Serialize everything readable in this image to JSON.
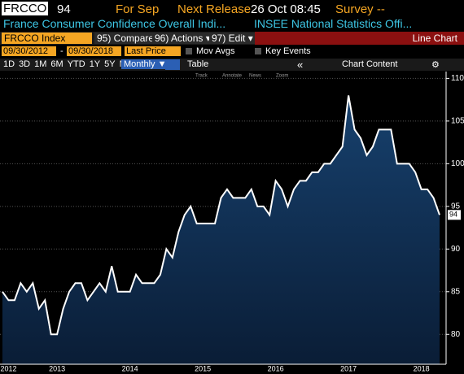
{
  "header": {
    "ticker": "FRCCO",
    "value": "94",
    "period": "For Sep",
    "next_release_label": "Next Release",
    "next_release": "26 Oct 08:45",
    "survey": "Survey --",
    "description": "France Consumer Confidence Overall Indi...",
    "source": "INSEE National Statistics Offi..."
  },
  "toolbar": {
    "security": "FRCCO Index",
    "compare": "95) Compare",
    "actions": "96) Actions ▾",
    "edit": "97) Edit ▾",
    "view": "Line Chart"
  },
  "range": {
    "start": "09/30/2012",
    "separator": "-",
    "end": "09/30/2018",
    "field": "Last Price",
    "mov_avgs": "Mov Avgs",
    "key_events": "Key Events"
  },
  "periods": [
    "1D",
    "3D",
    "1M",
    "6M",
    "YTD",
    "1Y",
    "5Y",
    "Max"
  ],
  "frequency": "Monthly ▼",
  "table": "Table",
  "collapse": "«",
  "chart_content": "Chart Content",
  "chart_tools": [
    "Track",
    "Annotate",
    "News",
    "Zoom"
  ],
  "chart_data": {
    "type": "area",
    "color": "#ffffff",
    "grid": true,
    "categories": [
      null,
      "2012",
      null,
      null,
      null,
      null,
      null,
      null,
      null,
      "2013",
      null,
      null,
      null,
      null,
      null,
      null,
      null,
      null,
      null,
      null,
      null,
      "2014",
      null,
      null,
      null,
      null,
      null,
      null,
      null,
      null,
      null,
      null,
      null,
      "2015",
      null,
      null,
      null,
      null,
      null,
      null,
      null,
      null,
      null,
      null,
      null,
      "2016",
      null,
      null,
      null,
      null,
      null,
      null,
      null,
      null,
      null,
      null,
      null,
      "2017",
      null,
      null,
      null,
      null,
      null,
      null,
      null,
      null,
      null,
      null,
      null,
      "2018",
      null,
      null,
      null
    ],
    "values": [
      85,
      84,
      84,
      86,
      85,
      86,
      83,
      84,
      80,
      80,
      83,
      85,
      86,
      86,
      84,
      85,
      86,
      85,
      88,
      85,
      85,
      85,
      87,
      86,
      86,
      86,
      87,
      90,
      89,
      92,
      94,
      95,
      93,
      93,
      93,
      93,
      96,
      97,
      96,
      96,
      96,
      97,
      95,
      95,
      94,
      98,
      97,
      95,
      97,
      98,
      98,
      99,
      99,
      100,
      100,
      101,
      102,
      108,
      104,
      103,
      101,
      102,
      104,
      104,
      104,
      100,
      100,
      100,
      99,
      97,
      97,
      96,
      94
    ],
    "ylim": [
      76.5,
      110.8
    ],
    "yticks": [
      80,
      85,
      90,
      95,
      100,
      105,
      110
    ]
  }
}
